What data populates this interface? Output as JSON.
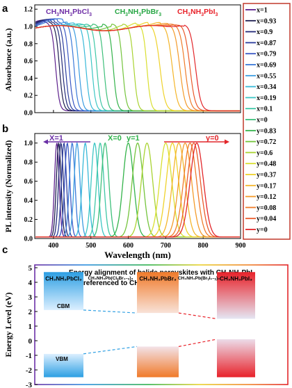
{
  "colors": {
    "pbcl3": "#6f2fa6",
    "pbbr3": "#28a745",
    "pbi3": "#e8222a",
    "cbm_blue": "#2d9fe3",
    "pbbr3_orange": "#f07a2a",
    "pbi3_red": "#e8222a",
    "legend_border": "#c0392b"
  },
  "figure": {
    "panel_labels": {
      "a": "a",
      "b": "b",
      "c": "c"
    },
    "shared_xlabel": "Wavelength (nm)",
    "legend_entries": [
      "x=1",
      "x=0.93",
      "x=0.9",
      "x=0.87",
      "x=0.79",
      "x=0.69",
      "x=0.55",
      "x=0.34",
      "x=0.19",
      "x=0.1",
      "x=0",
      "y=0.83",
      "y=0.72",
      "y=0.6",
      "y=0.48",
      "y=0.37",
      "y=0.17",
      "y=0.12",
      "y=0.08",
      "y=0.04",
      "y=0"
    ],
    "legend_colors": [
      "#5c1f8c",
      "#1c1c4e",
      "#232a78",
      "#2c3d9e",
      "#3a57c4",
      "#3a79d8",
      "#3b9ce0",
      "#37b8d8",
      "#3cc6c4",
      "#3ec7a6",
      "#3dbf7a",
      "#33b34a",
      "#74c43c",
      "#a9d331",
      "#d9df2f",
      "#efd22b",
      "#f4b52a",
      "#f39a2a",
      "#ef7c2a",
      "#ea5a2a",
      "#e2262a"
    ]
  },
  "chart_data": [
    {
      "type": "line",
      "panel": "a",
      "ylabel": "Absorbance (a.u.)",
      "xlabel": "",
      "xlim": [
        350,
        900
      ],
      "ylim": [
        0,
        1.25
      ],
      "yticks": [
        "0.0",
        "0.2",
        "0.4",
        "0.6",
        "0.8",
        "1.0",
        "1.2"
      ],
      "series_label_note": [
        "CH3NH3PbCl3",
        "CH3NH3PbBr3",
        "CH3NH3PbI3"
      ],
      "compound_labels": [
        {
          "base": "CH",
          "sub1": "3",
          "mid": "NH",
          "sub2": "3",
          "tail": "PbCl",
          "sub3": "3"
        },
        {
          "base": "CH",
          "sub1": "3",
          "mid": "NH",
          "sub2": "3",
          "tail": "PbBr",
          "sub3": "3"
        },
        {
          "base": "CH",
          "sub1": "3",
          "mid": "NH",
          "sub2": "3",
          "tail": "PbI",
          "sub3": "3"
        }
      ],
      "series": [
        {
          "name": "x=1",
          "edge": 406
        },
        {
          "name": "x=0.93",
          "edge": 416
        },
        {
          "name": "x=0.9",
          "edge": 424
        },
        {
          "name": "x=0.87",
          "edge": 432
        },
        {
          "name": "x=0.79",
          "edge": 442
        },
        {
          "name": "x=0.69",
          "edge": 455
        },
        {
          "name": "x=0.55",
          "edge": 468
        },
        {
          "name": "x=0.34",
          "edge": 487
        },
        {
          "name": "x=0.19",
          "edge": 503
        },
        {
          "name": "x=0.1",
          "edge": 516
        },
        {
          "name": "x=0",
          "edge": 535
        },
        {
          "name": "y=0.83",
          "edge": 560
        },
        {
          "name": "y=0.72",
          "edge": 585
        },
        {
          "name": "y=0.6",
          "edge": 615
        },
        {
          "name": "y=0.48",
          "edge": 650
        },
        {
          "name": "y=0.37",
          "edge": 685
        },
        {
          "name": "y=0.17",
          "edge": 718
        },
        {
          "name": "y=0.12",
          "edge": 738
        },
        {
          "name": "y=0.08",
          "edge": 752
        },
        {
          "name": "y=0.04",
          "edge": 765
        },
        {
          "name": "y=0",
          "edge": 780
        }
      ]
    },
    {
      "type": "line",
      "panel": "b",
      "ylabel": "PL intensity (Normalized)",
      "xlabel": "Wavelength (nm)",
      "xlim": [
        350,
        900
      ],
      "ylim": [
        0,
        1.1
      ],
      "xticks": [
        "400",
        "500",
        "600",
        "700",
        "800",
        "900"
      ],
      "yticks": [
        "0.0",
        "0.2",
        "0.4",
        "0.6",
        "0.8",
        "1.0"
      ],
      "annotations": [
        "X=1",
        "X=0",
        "y=1",
        "y=0"
      ],
      "series": [
        {
          "name": "x=1",
          "peak": 409
        },
        {
          "name": "x=0.93",
          "peak": 414
        },
        {
          "name": "x=0.9",
          "peak": 420
        },
        {
          "name": "x=0.87",
          "peak": 428
        },
        {
          "name": "x=0.79",
          "peak": 437
        },
        {
          "name": "x=0.69",
          "peak": 450
        },
        {
          "name": "x=0.55",
          "peak": 463
        },
        {
          "name": "x=0.34",
          "peak": 485
        },
        {
          "name": "x=0.19",
          "peak": 510
        },
        {
          "name": "x=0.1",
          "peak": 525
        },
        {
          "name": "x=0",
          "peak": 538
        },
        {
          "name": "y=0.83",
          "peak": 600
        },
        {
          "name": "y=0.72",
          "peak": 625
        },
        {
          "name": "y=0.6",
          "peak": 650
        },
        {
          "name": "y=0.48",
          "peak": 700
        },
        {
          "name": "y=0.37",
          "peak": 718
        },
        {
          "name": "y=0.17",
          "peak": 735
        },
        {
          "name": "y=0.12",
          "peak": 752
        },
        {
          "name": "y=0.08",
          "peak": 765
        },
        {
          "name": "y=0.04",
          "peak": 775
        },
        {
          "name": "y=0",
          "peak": 783
        }
      ]
    },
    {
      "type": "bar",
      "panel": "c",
      "title_line1": "Energy alignment of halide perovskites with CH",
      "title_line1_subs": [
        "3",
        "3",
        "3"
      ],
      "title_line2": "as referenced to CH",
      "ylabel": "Energy Level (eV)",
      "ylim": [
        -3,
        5
      ],
      "yticks": [
        "-3",
        "-2",
        "-1",
        "0",
        "1",
        "2",
        "3",
        "4",
        "5"
      ],
      "cbm_label": "CBM",
      "vbm_label": "VBM",
      "mid_labels": [
        "CH₃NH₃Pb(ClₓBr₁₋ₓ)₃",
        "CH₃NH₃Pb(BrᵧI₁₋ᵧ)₃"
      ],
      "materials": [
        {
          "name": "CH₃NH₃PbCl₃",
          "cbm": 2.1,
          "cb_top": 4.7,
          "vbm": -0.9,
          "vb_bottom": -2.5,
          "color": "#2d9fe3"
        },
        {
          "name": "CH₃NH₃PbBr₃",
          "cbm": 1.9,
          "cb_top": 4.7,
          "vbm": -0.4,
          "vb_bottom": -2.5,
          "color": "#f07a2a"
        },
        {
          "name": "CH₃NH₃PbI₃",
          "cbm": 1.5,
          "cb_top": 4.7,
          "vbm": 0.1,
          "vb_bottom": -2.5,
          "color": "#e8222a"
        }
      ]
    }
  ]
}
